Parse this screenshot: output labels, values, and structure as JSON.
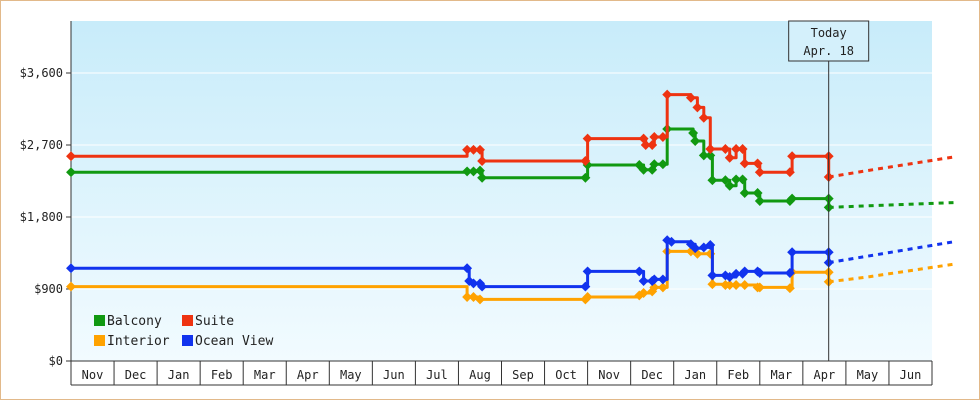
{
  "chart_data": {
    "type": "line",
    "title": "",
    "xlabel": "",
    "ylabel": "",
    "y_ticks": [
      {
        "value": 0,
        "label": "$0"
      },
      {
        "value": 900,
        "label": "$900"
      },
      {
        "value": 1800,
        "label": "$1,800"
      },
      {
        "value": 2700,
        "label": "$2,700"
      },
      {
        "value": 3600,
        "label": "$3,600"
      }
    ],
    "ylim": [
      0,
      4250
    ],
    "month_ticks": [
      "Nov",
      "Dec",
      "Jan",
      "Feb",
      "Mar",
      "Apr",
      "May",
      "Jun",
      "Jul",
      "Aug",
      "Sep",
      "Oct",
      "Nov",
      "Dec",
      "Jan",
      "Feb",
      "Mar",
      "Apr",
      "May",
      "Jun"
    ],
    "today_marker": {
      "line1": "Today",
      "line2": "Apr. 18",
      "month_index": 17.6
    },
    "legend_placement": "bottom-left",
    "series": [
      {
        "name": "Balcony",
        "color": "#119911",
        "points": [
          [
            0.0,
            2360
          ],
          [
            9.2,
            2370
          ],
          [
            9.35,
            2370
          ],
          [
            9.5,
            2380
          ],
          [
            9.55,
            2290
          ],
          [
            11.95,
            2290
          ],
          [
            12.0,
            2450
          ],
          [
            13.2,
            2450
          ],
          [
            13.3,
            2390
          ],
          [
            13.5,
            2390
          ],
          [
            13.55,
            2460
          ],
          [
            13.75,
            2460
          ],
          [
            13.85,
            2900
          ],
          [
            14.45,
            2850
          ],
          [
            14.5,
            2750
          ],
          [
            14.7,
            2570
          ],
          [
            14.85,
            2570
          ],
          [
            14.9,
            2260
          ],
          [
            15.2,
            2260
          ],
          [
            15.3,
            2190
          ],
          [
            15.45,
            2270
          ],
          [
            15.6,
            2270
          ],
          [
            15.65,
            2100
          ],
          [
            15.95,
            2100
          ],
          [
            16.0,
            2000
          ],
          [
            16.7,
            2000
          ],
          [
            16.75,
            2030
          ],
          [
            17.6,
            2030
          ],
          [
            17.6,
            1920
          ]
        ],
        "projection": [
          [
            17.6,
            1920
          ],
          [
            18.5,
            1940
          ],
          [
            20.5,
            1980
          ]
        ]
      },
      {
        "name": "Suite",
        "color": "#ee3311",
        "points": [
          [
            0.0,
            2560
          ],
          [
            9.2,
            2640
          ],
          [
            9.35,
            2640
          ],
          [
            9.5,
            2640
          ],
          [
            9.55,
            2500
          ],
          [
            11.95,
            2500
          ],
          [
            12.0,
            2780
          ],
          [
            13.3,
            2780
          ],
          [
            13.35,
            2700
          ],
          [
            13.5,
            2700
          ],
          [
            13.55,
            2800
          ],
          [
            13.75,
            2800
          ],
          [
            13.85,
            3330
          ],
          [
            14.4,
            3290
          ],
          [
            14.55,
            3170
          ],
          [
            14.7,
            3040
          ],
          [
            14.85,
            2650
          ],
          [
            15.2,
            2650
          ],
          [
            15.3,
            2540
          ],
          [
            15.45,
            2650
          ],
          [
            15.6,
            2650
          ],
          [
            15.65,
            2470
          ],
          [
            15.95,
            2470
          ],
          [
            16.0,
            2360
          ],
          [
            16.7,
            2360
          ],
          [
            16.75,
            2560
          ],
          [
            17.6,
            2560
          ],
          [
            17.6,
            2300
          ]
        ],
        "projection": [
          [
            17.6,
            2300
          ],
          [
            18.5,
            2380
          ],
          [
            20.5,
            2550
          ]
        ]
      },
      {
        "name": "Interior",
        "color": "#ffa200",
        "points": [
          [
            0.0,
            930
          ],
          [
            9.2,
            800
          ],
          [
            9.35,
            800
          ],
          [
            9.5,
            770
          ],
          [
            11.95,
            770
          ],
          [
            12.0,
            800
          ],
          [
            13.2,
            820
          ],
          [
            13.3,
            850
          ],
          [
            13.5,
            870
          ],
          [
            13.55,
            920
          ],
          [
            13.75,
            920
          ],
          [
            13.85,
            1370
          ],
          [
            14.4,
            1370
          ],
          [
            14.55,
            1340
          ],
          [
            14.85,
            1340
          ],
          [
            14.9,
            960
          ],
          [
            15.2,
            950
          ],
          [
            15.3,
            950
          ],
          [
            15.45,
            950
          ],
          [
            15.65,
            950
          ],
          [
            15.95,
            920
          ],
          [
            16.0,
            920
          ],
          [
            16.7,
            910
          ],
          [
            16.75,
            1110
          ],
          [
            17.6,
            1110
          ],
          [
            17.6,
            990
          ]
        ],
        "projection": [
          [
            17.6,
            990
          ],
          [
            18.5,
            1050
          ],
          [
            20.5,
            1210
          ]
        ]
      },
      {
        "name": "Ocean View",
        "color": "#1133ee",
        "points": [
          [
            0.0,
            1160
          ],
          [
            9.2,
            1160
          ],
          [
            9.25,
            1000
          ],
          [
            9.35,
            970
          ],
          [
            9.5,
            970
          ],
          [
            9.55,
            930
          ],
          [
            11.95,
            930
          ],
          [
            12.0,
            1120
          ],
          [
            13.2,
            1120
          ],
          [
            13.3,
            1000
          ],
          [
            13.5,
            1000
          ],
          [
            13.55,
            1020
          ],
          [
            13.75,
            1020
          ],
          [
            13.85,
            1510
          ],
          [
            13.95,
            1490
          ],
          [
            14.4,
            1460
          ],
          [
            14.5,
            1410
          ],
          [
            14.7,
            1420
          ],
          [
            14.85,
            1450
          ],
          [
            14.9,
            1070
          ],
          [
            15.2,
            1070
          ],
          [
            15.3,
            1050
          ],
          [
            15.45,
            1090
          ],
          [
            15.6,
            1090
          ],
          [
            15.65,
            1120
          ],
          [
            15.95,
            1120
          ],
          [
            16.0,
            1100
          ],
          [
            16.7,
            1100
          ],
          [
            16.75,
            1360
          ],
          [
            17.6,
            1360
          ],
          [
            17.6,
            1230
          ]
        ],
        "projection": [
          [
            17.6,
            1230
          ],
          [
            18.5,
            1310
          ],
          [
            20.5,
            1490
          ]
        ]
      }
    ]
  }
}
